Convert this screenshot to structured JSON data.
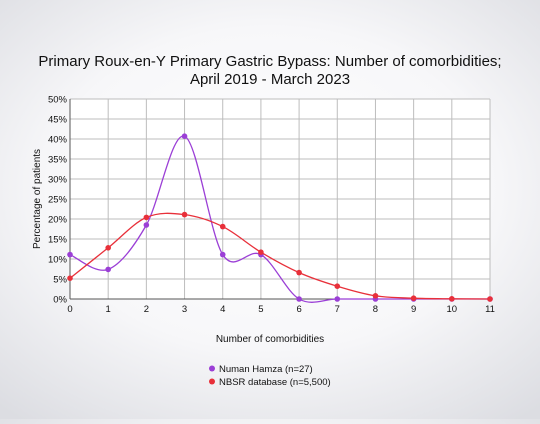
{
  "chart_data": {
    "type": "line",
    "title_line1": "Primary Roux-en-Y Primary Gastric Bypass: Number of comorbidities;",
    "title_line2": "April 2019 - March 2023",
    "xlabel": "Number of comorbidities",
    "ylabel": "Percentage of patients",
    "x": [
      0,
      1,
      2,
      3,
      4,
      5,
      6,
      7,
      8,
      9,
      10,
      11
    ],
    "xlim": [
      0,
      11
    ],
    "ylim": [
      0,
      50
    ],
    "yticks": [
      "0%",
      "5%",
      "10%",
      "15%",
      "20%",
      "25%",
      "30%",
      "35%",
      "40%",
      "45%",
      "50%"
    ],
    "grid": true,
    "legend_position": "bottom",
    "series": [
      {
        "name": "Numan Hamza (n=27)",
        "color": "#9b3fd6",
        "values": [
          11.1,
          7.4,
          18.5,
          40.7,
          11.1,
          11.1,
          0,
          0,
          0,
          0,
          0,
          0
        ]
      },
      {
        "name": "NBSR database (n=5,500)",
        "color": "#e8303a",
        "values": [
          5.2,
          12.8,
          20.4,
          21.1,
          18.1,
          11.7,
          6.6,
          3.2,
          0.8,
          0.2,
          0.05,
          0.0
        ]
      }
    ]
  }
}
